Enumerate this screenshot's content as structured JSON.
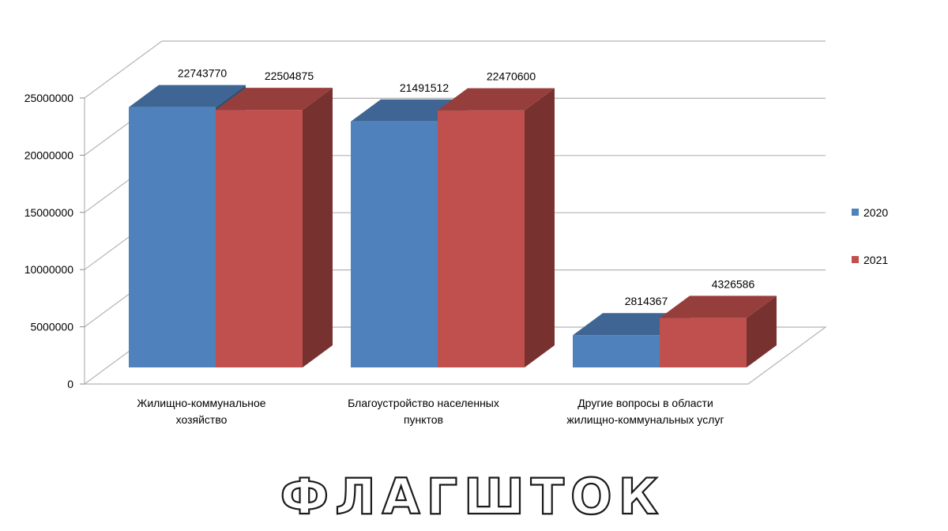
{
  "chart_data": {
    "type": "bar",
    "categories": [
      [
        "Жилищно-коммунальное",
        "хозяйство"
      ],
      [
        "Благоустройство населенных",
        "пунктов"
      ],
      [
        "Другие вопросы в области",
        "жилищно-коммунальных услуг"
      ]
    ],
    "series": [
      {
        "name": "2020",
        "color": "#4f81bd",
        "values": [
          22743770,
          21491512,
          2814367
        ]
      },
      {
        "name": "2021",
        "color": "#c0504d",
        "values": [
          22504875,
          22470600,
          4326586
        ]
      }
    ],
    "ylim": [
      0,
      25000000
    ],
    "yticks": [
      0,
      5000000,
      10000000,
      15000000,
      20000000,
      25000000
    ],
    "ytick_labels": [
      "0",
      "5000000",
      "10000000",
      "15000000",
      "20000000",
      "25000000"
    ],
    "data_labels": true,
    "grid": true,
    "legend_position": "right",
    "is_3d": true
  },
  "watermark": "ФЛАГШТОК"
}
